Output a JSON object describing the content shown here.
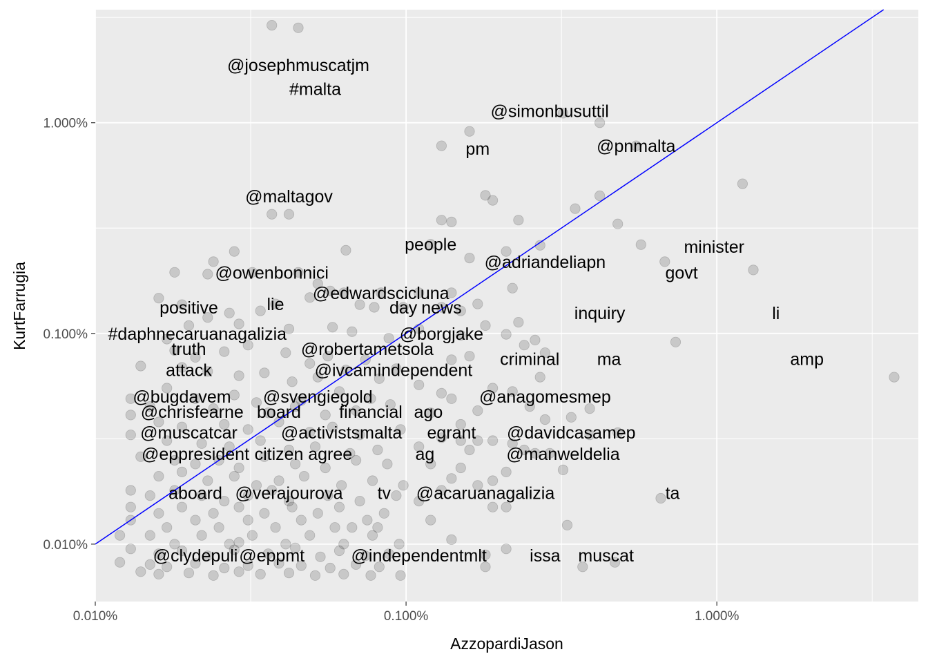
{
  "chart_data": {
    "type": "scatter",
    "xlabel": "AzzopardiJason",
    "ylabel": "KurtFarrugia",
    "x_scale": "log10",
    "y_scale": "log10",
    "xlim": [
      0.0001,
      0.0445
    ],
    "ylim": [
      5.34e-05,
      0.0344
    ],
    "x_ticks": [
      {
        "value": 0.0001,
        "label": "0.010%"
      },
      {
        "value": 0.001,
        "label": "0.100%"
      },
      {
        "value": 0.01,
        "label": "1.000%"
      }
    ],
    "y_ticks": [
      {
        "value": 0.0001,
        "label": "0.010%"
      },
      {
        "value": 0.001,
        "label": "0.100%"
      },
      {
        "value": 0.01,
        "label": "1.000%"
      }
    ],
    "grid": true,
    "reference_line": {
      "type": "identity",
      "color": "#0000ff"
    },
    "point_color": "#000000",
    "point_opacity": 0.15,
    "labels": [
      {
        "text": "@josephmuscatjm",
        "x": 0.00045,
        "y": 0.0188
      },
      {
        "text": "#malta",
        "x": 0.00051,
        "y": 0.0145
      },
      {
        "text": "@simonbusuttil",
        "x": 0.0029,
        "y": 0.0114
      },
      {
        "text": "pm",
        "x": 0.0017,
        "y": 0.00755
      },
      {
        "text": "@pnmalta",
        "x": 0.0055,
        "y": 0.00777
      },
      {
        "text": "@maltagov",
        "x": 0.00042,
        "y": 0.00448
      },
      {
        "text": "people",
        "x": 0.0012,
        "y": 0.00265
      },
      {
        "text": "minister",
        "x": 0.0098,
        "y": 0.00258
      },
      {
        "text": "@adriandeliapn",
        "x": 0.0028,
        "y": 0.00219
      },
      {
        "text": "govt",
        "x": 0.0077,
        "y": 0.00195
      },
      {
        "text": "@owenbonnici",
        "x": 0.00037,
        "y": 0.00195
      },
      {
        "text": "@edwardscicluna",
        "x": 0.00083,
        "y": 0.00156
      },
      {
        "text": "positive",
        "x": 0.0002,
        "y": 0.00133
      },
      {
        "text": "lie",
        "x": 0.00038,
        "y": 0.00138
      },
      {
        "text": "day",
        "x": 0.00098,
        "y": 0.00133
      },
      {
        "text": "news",
        "x": 0.0013,
        "y": 0.00133
      },
      {
        "text": "inquiry",
        "x": 0.0042,
        "y": 0.00125
      },
      {
        "text": "li",
        "x": 0.0155,
        "y": 0.00125
      },
      {
        "text": "#daphnecaruanagalizia",
        "x": 0.000213,
        "y": 0.001
      },
      {
        "text": "@borgjake",
        "x": 0.0013,
        "y": 0.001
      },
      {
        "text": "truth",
        "x": 0.0002,
        "y": 0.000847
      },
      {
        "text": "@robertametsola",
        "x": 0.00075,
        "y": 0.000847
      },
      {
        "text": "criminal",
        "x": 0.0025,
        "y": 0.000757
      },
      {
        "text": "ma",
        "x": 0.0045,
        "y": 0.000757
      },
      {
        "text": "amp",
        "x": 0.0195,
        "y": 0.000757
      },
      {
        "text": "attack",
        "x": 0.0002,
        "y": 0.000673
      },
      {
        "text": "@ivcam",
        "x": 0.00064,
        "y": 0.000673
      },
      {
        "text": "independent",
        "x": 0.00115,
        "y": 0.000673
      },
      {
        "text": "@bugdavem",
        "x": 0.00019,
        "y": 0.000503
      },
      {
        "text": "@svengiegold",
        "x": 0.00052,
        "y": 0.000503
      },
      {
        "text": "@anagomesmep",
        "x": 0.0028,
        "y": 0.000503
      },
      {
        "text": "@chrisfearne",
        "x": 0.000205,
        "y": 0.000425
      },
      {
        "text": "board",
        "x": 0.00039,
        "y": 0.000425
      },
      {
        "text": "financial",
        "x": 0.00077,
        "y": 0.000425
      },
      {
        "text": "ago",
        "x": 0.00118,
        "y": 0.000425
      },
      {
        "text": "@muscatcar",
        "x": 0.0002,
        "y": 0.000339
      },
      {
        "text": "@activistsmalta",
        "x": 0.00062,
        "y": 0.000339
      },
      {
        "text": "egrant",
        "x": 0.0014,
        "y": 0.000339
      },
      {
        "text": "@davidcasamep",
        "x": 0.0034,
        "y": 0.000339
      },
      {
        "text": "@eppresident",
        "x": 0.00021,
        "y": 0.000269
      },
      {
        "text": "citizen",
        "x": 0.00039,
        "y": 0.000269
      },
      {
        "text": "agree",
        "x": 0.00057,
        "y": 0.000269
      },
      {
        "text": "ag",
        "x": 0.00115,
        "y": 0.000269
      },
      {
        "text": "@manweldelia",
        "x": 0.0032,
        "y": 0.000269
      },
      {
        "text": "aboard",
        "x": 0.00021,
        "y": 0.000175
      },
      {
        "text": "@verajourova",
        "x": 0.00042,
        "y": 0.000175
      },
      {
        "text": "tv",
        "x": 0.00085,
        "y": 0.000175
      },
      {
        "text": "@acaruanagalizia",
        "x": 0.0018,
        "y": 0.000175
      },
      {
        "text": "ta",
        "x": 0.0072,
        "y": 0.000175
      },
      {
        "text": "@clydepuli",
        "x": 0.00021,
        "y": 8.85e-05
      },
      {
        "text": "@eppmt",
        "x": 0.00037,
        "y": 8.85e-05
      },
      {
        "text": "@independentmlt",
        "x": 0.0011,
        "y": 8.85e-05
      },
      {
        "text": "issa",
        "x": 0.0028,
        "y": 8.85e-05
      },
      {
        "text": "muscat",
        "x": 0.0044,
        "y": 8.85e-05
      }
    ],
    "points": [
      [
        0.00037,
        0.029
      ],
      [
        0.00045,
        0.0282
      ],
      [
        0.0013,
        0.00777
      ],
      [
        0.0016,
        0.0091
      ],
      [
        0.0032,
        0.0111
      ],
      [
        0.0042,
        0.01
      ],
      [
        0.0055,
        0.00777
      ],
      [
        0.0121,
        0.00513
      ],
      [
        0.0042,
        0.0045
      ],
      [
        0.0018,
        0.00452
      ],
      [
        0.0019,
        0.00428
      ],
      [
        0.00037,
        0.00368
      ],
      [
        0.00042,
        0.00368
      ],
      [
        0.0013,
        0.00345
      ],
      [
        0.0014,
        0.00338
      ],
      [
        0.0023,
        0.00345
      ],
      [
        0.0035,
        0.00391
      ],
      [
        0.0048,
        0.00331
      ],
      [
        0.0057,
        0.00264
      ],
      [
        0.0068,
        0.00219
      ],
      [
        0.0131,
        0.002
      ],
      [
        0.0027,
        0.00262
      ],
      [
        0.0021,
        0.00245
      ],
      [
        0.0016,
        0.00228
      ],
      [
        0.00028,
        0.00245
      ],
      [
        0.00064,
        0.00248
      ],
      [
        0.0012,
        0.00265
      ],
      [
        0.00024,
        0.00219
      ],
      [
        0.00032,
        0.00195
      ],
      [
        0.00045,
        0.00195
      ],
      [
        0.00018,
        0.00195
      ],
      [
        0.00023,
        0.00191
      ],
      [
        0.00052,
        0.00172
      ],
      [
        0.00057,
        0.00159
      ],
      [
        0.00063,
        0.00156
      ],
      [
        0.00083,
        0.00156
      ],
      [
        0.0011,
        0.00156
      ],
      [
        0.0014,
        0.00156
      ],
      [
        0.0022,
        0.00164
      ],
      [
        0.0017,
        0.00138
      ],
      [
        0.0015,
        0.00128
      ],
      [
        0.00016,
        0.00147
      ],
      [
        0.00019,
        0.00137
      ],
      [
        0.00038,
        0.00138
      ],
      [
        0.00049,
        0.00148
      ],
      [
        0.00071,
        0.00137
      ],
      [
        0.00079,
        0.00133
      ],
      [
        0.00098,
        0.00133
      ],
      [
        0.0013,
        0.00133
      ],
      [
        0.00034,
        0.00128
      ],
      [
        0.00027,
        0.00125
      ],
      [
        0.00023,
        0.00119
      ],
      [
        0.0002,
        0.00109
      ],
      [
        0.00029,
        0.00111
      ],
      [
        0.00042,
        0.00105
      ],
      [
        0.00058,
        0.00107
      ],
      [
        0.00067,
        0.00102
      ],
      [
        0.00088,
        0.00095
      ],
      [
        0.0011,
        0.00105
      ],
      [
        0.0015,
        0.00098
      ],
      [
        0.0018,
        0.00109
      ],
      [
        0.0021,
        0.00099
      ],
      [
        0.0023,
        0.00113
      ],
      [
        0.0024,
        0.00088
      ],
      [
        0.0026,
        0.00093
      ],
      [
        0.0028,
        0.00081
      ],
      [
        0.0016,
        0.00078
      ],
      [
        0.0014,
        0.00075
      ],
      [
        0.00017,
        0.00094
      ],
      [
        0.00018,
        0.00083
      ],
      [
        0.00021,
        0.00077
      ],
      [
        0.00026,
        0.00082
      ],
      [
        0.00031,
        0.00088
      ],
      [
        0.00041,
        0.00081
      ],
      [
        0.00049,
        0.00072
      ],
      [
        0.00056,
        0.00078
      ],
      [
        0.00074,
        0.00075
      ],
      [
        0.00093,
        0.00068
      ],
      [
        0.00014,
        0.0007
      ],
      [
        0.00019,
        0.00069
      ],
      [
        0.00023,
        0.00066
      ],
      [
        0.00029,
        0.00063
      ],
      [
        0.00035,
        0.00065
      ],
      [
        0.00043,
        0.00059
      ],
      [
        0.00052,
        0.00062
      ],
      [
        0.00064,
        0.00067
      ],
      [
        0.00082,
        0.00061
      ],
      [
        0.0011,
        0.00057
      ],
      [
        0.0019,
        0.00055
      ],
      [
        0.0022,
        0.00053
      ],
      [
        0.0027,
        0.00062
      ],
      [
        0.00737,
        0.00091
      ],
      [
        0.0372,
        0.00062
      ],
      [
        0.0014,
        0.00049
      ],
      [
        0.0013,
        0.00052
      ],
      [
        0.00017,
        0.00055
      ],
      [
        0.00021,
        0.00049
      ],
      [
        0.00028,
        0.00051
      ],
      [
        0.00033,
        0.00047
      ],
      [
        0.00046,
        0.00048
      ],
      [
        0.00061,
        0.00053
      ],
      [
        0.00077,
        0.00049
      ],
      [
        0.00013,
        0.00049
      ],
      [
        0.00015,
        0.00045
      ],
      [
        0.00024,
        0.00044
      ],
      [
        0.00036,
        0.00042
      ],
      [
        0.00044,
        0.00045
      ],
      [
        0.00055,
        0.00041
      ],
      [
        0.00069,
        0.00043
      ],
      [
        0.00089,
        0.00046
      ],
      [
        0.0012,
        0.00042
      ],
      [
        0.0017,
        0.00043
      ],
      [
        0.0025,
        0.00045
      ],
      [
        0.0028,
        0.00039
      ],
      [
        0.0034,
        0.0004
      ],
      [
        0.00013,
        0.00041
      ],
      [
        0.00016,
        0.00038
      ],
      [
        0.00019,
        0.00036
      ],
      [
        0.00026,
        0.00037
      ],
      [
        0.00031,
        0.00035
      ],
      [
        0.00039,
        0.00038
      ],
      [
        0.00049,
        0.00034
      ],
      [
        0.00058,
        0.00036
      ],
      [
        0.00071,
        0.00033
      ],
      [
        0.00096,
        0.00035
      ],
      [
        0.0013,
        0.00032
      ],
      [
        0.0015,
        0.00031
      ],
      [
        0.0019,
        0.00031
      ],
      [
        0.0022,
        0.0003
      ],
      [
        0.0039,
        0.00033
      ],
      [
        0.00013,
        0.00033
      ],
      [
        0.00017,
        0.00031
      ],
      [
        0.00022,
        0.0003
      ],
      [
        0.00027,
        0.00029
      ],
      [
        0.00034,
        0.00031
      ],
      [
        0.00042,
        0.00028
      ],
      [
        0.00051,
        0.00029
      ],
      [
        0.00066,
        0.00027
      ],
      [
        0.00081,
        0.00028
      ],
      [
        0.0011,
        0.00029
      ],
      [
        0.0016,
        0.00028
      ],
      [
        0.0024,
        0.00028
      ],
      [
        0.0029,
        0.00027
      ],
      [
        0.00014,
        0.00026
      ],
      [
        0.00018,
        0.00025
      ],
      [
        0.00021,
        0.00024
      ],
      [
        0.00025,
        0.00025
      ],
      [
        0.00029,
        0.00023
      ],
      [
        0.00035,
        0.00026
      ],
      [
        0.00044,
        0.00024
      ],
      [
        0.00055,
        0.00023
      ],
      [
        0.00069,
        0.00025
      ],
      [
        0.00087,
        0.00024
      ],
      [
        0.0012,
        0.00024
      ],
      [
        0.0015,
        0.00023
      ],
      [
        0.0021,
        0.00022
      ],
      [
        0.0014,
        0.000205
      ],
      [
        0.00016,
        0.00021
      ],
      [
        0.00019,
        0.00022
      ],
      [
        0.00023,
        0.0002
      ],
      [
        0.00028,
        0.00021
      ],
      [
        0.00033,
        0.00019
      ],
      [
        0.00039,
        0.0002
      ],
      [
        0.00047,
        0.00021
      ],
      [
        0.00062,
        0.00019
      ],
      [
        0.00078,
        0.0002
      ],
      [
        0.00098,
        0.00019
      ],
      [
        0.0013,
        0.00018
      ],
      [
        0.0017,
        0.00019
      ],
      [
        0.0019,
        0.0002
      ],
      [
        0.00013,
        0.00018
      ],
      [
        0.00015,
        0.00017
      ],
      [
        0.00018,
        0.00018
      ],
      [
        0.00022,
        0.00017
      ],
      [
        0.00026,
        0.00016
      ],
      [
        0.00031,
        0.00017
      ],
      [
        0.00037,
        0.00018
      ],
      [
        0.00042,
        0.00016
      ],
      [
        0.00056,
        0.00017
      ],
      [
        0.00071,
        0.00016
      ],
      [
        0.00093,
        0.00017
      ],
      [
        0.0011,
        0.00016
      ],
      [
        0.0066,
        0.000165
      ],
      [
        0.0019,
        0.00015
      ],
      [
        0.0021,
        0.00015
      ],
      [
        0.00013,
        0.00015
      ],
      [
        0.00016,
        0.00014
      ],
      [
        0.00019,
        0.00015
      ],
      [
        0.00024,
        0.00014
      ],
      [
        0.00029,
        0.00015
      ],
      [
        0.00035,
        0.00014
      ],
      [
        0.00043,
        0.00015
      ],
      [
        0.00052,
        0.00014
      ],
      [
        0.00061,
        0.00015
      ],
      [
        0.00075,
        0.00013
      ],
      [
        0.00085,
        0.00014
      ],
      [
        0.0012,
        0.00013
      ],
      [
        0.00013,
        0.00013
      ],
      [
        0.00017,
        0.00012
      ],
      [
        0.00021,
        0.00013
      ],
      [
        0.00025,
        0.00012
      ],
      [
        0.00031,
        0.00013
      ],
      [
        0.00038,
        0.00012
      ],
      [
        0.00046,
        0.00013
      ],
      [
        0.00059,
        0.00012
      ],
      [
        0.00067,
        0.00012
      ],
      [
        0.00081,
        0.00012
      ],
      [
        0.0033,
        0.000123
      ],
      [
        0.00012,
        0.00011
      ],
      [
        0.00015,
        0.00011
      ],
      [
        0.00018,
        0.0001
      ],
      [
        0.00022,
        0.00011
      ],
      [
        0.00027,
        0.0001
      ],
      [
        0.00032,
        0.00011
      ],
      [
        0.00041,
        0.0001
      ],
      [
        0.00049,
        0.00011
      ],
      [
        0.00063,
        0.0001
      ],
      [
        0.00078,
        0.00011
      ],
      [
        0.00095,
        0.0001
      ],
      [
        0.0014,
        0.000105
      ],
      [
        0.00013,
        9.5e-05
      ],
      [
        0.00016,
        9e-05
      ],
      [
        0.00019,
        9.3e-05
      ],
      [
        0.00023,
        8.8e-05
      ],
      [
        0.00028,
        9.4e-05
      ],
      [
        0.00029,
        0.000102
      ],
      [
        0.00036,
        9e-05
      ],
      [
        0.00044,
        9.6e-05
      ],
      [
        0.00053,
        8.7e-05
      ],
      [
        0.00061,
        9.3e-05
      ],
      [
        0.00074,
        8.8e-05
      ],
      [
        0.00088,
        9e-05
      ],
      [
        0.0021,
        9.5e-05
      ],
      [
        0.0018,
        8.9e-05
      ],
      [
        0.00012,
        8.2e-05
      ],
      [
        0.00015,
        8e-05
      ],
      [
        0.00017,
        7.8e-05
      ],
      [
        0.00021,
        8.1e-05
      ],
      [
        0.00026,
        7.7e-05
      ],
      [
        0.00031,
        7.9e-05
      ],
      [
        0.00039,
        8.1e-05
      ],
      [
        0.00046,
        7.9e-05
      ],
      [
        0.00057,
        7.7e-05
      ],
      [
        0.00069,
        8e-05
      ],
      [
        0.00082,
        7.8e-05
      ],
      [
        0.0018,
        7.8e-05
      ],
      [
        0.0037,
        7.8e-05
      ],
      [
        0.0047,
        8.2e-05
      ],
      [
        0.00014,
        7.4e-05
      ],
      [
        0.00016,
        7.2e-05
      ],
      [
        0.0002,
        7.3e-05
      ],
      [
        0.00024,
        7.1e-05
      ],
      [
        0.00029,
        7.4e-05
      ],
      [
        0.00034,
        7.2e-05
      ],
      [
        0.00042,
        7.3e-05
      ],
      [
        0.00051,
        7.1e-05
      ],
      [
        0.00063,
        7.2e-05
      ],
      [
        0.00077,
        7.1e-05
      ],
      [
        0.00096,
        7.1e-05
      ],
      [
        0.0048,
        0.000338
      ],
      [
        0.0032,
        0.000225
      ],
      [
        0.0039,
        0.00044
      ],
      [
        0.0026,
        0.00027
      ],
      [
        0.0015,
        0.00037
      ],
      [
        0.0017,
        0.00031
      ]
    ]
  }
}
